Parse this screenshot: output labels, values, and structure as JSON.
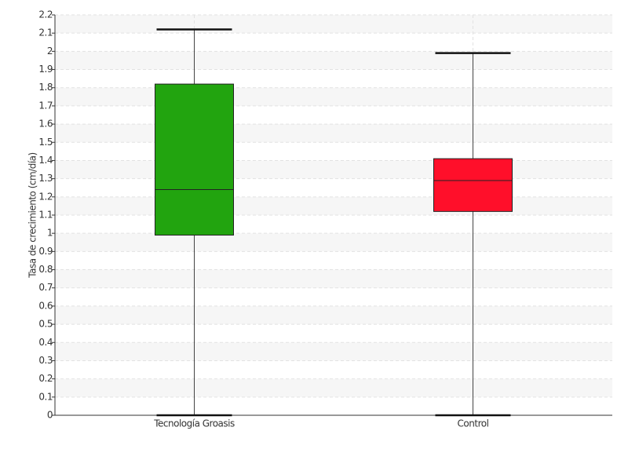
{
  "chart_data": {
    "type": "box",
    "y_label": "Tasa de crecimiento (cm/día)",
    "categories": [
      "Tecnología Groasis",
      "Control"
    ],
    "colors": [
      "#22a40f",
      "#ff0f2a"
    ],
    "min": [
      0,
      0
    ],
    "q1": [
      0.99,
      1.12
    ],
    "median": [
      1.24,
      1.29
    ],
    "q3": [
      1.82,
      1.41
    ],
    "max": [
      2.12,
      1.99
    ],
    "ylim": [
      0,
      2.2
    ],
    "yticks": [
      0,
      0.1,
      0.2,
      0.3,
      0.4,
      0.5,
      0.6,
      0.7,
      0.8,
      0.9,
      1,
      1.1,
      1.2,
      1.3,
      1.4,
      1.5,
      1.6,
      1.7,
      1.8,
      1.9,
      2,
      2.1,
      2.2
    ],
    "grid": true
  }
}
